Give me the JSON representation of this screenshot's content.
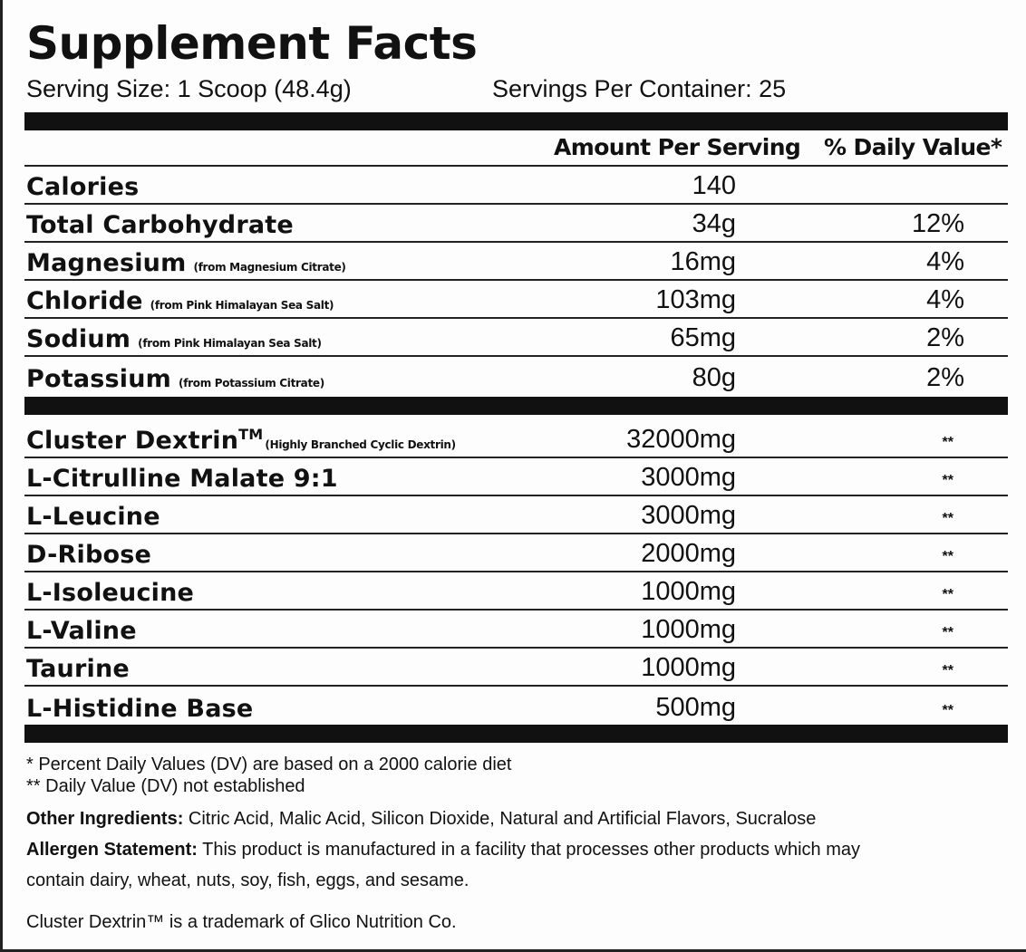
{
  "title": "Supplement Facts",
  "serving_size": "Serving Size: 1 Scoop (48.4g)",
  "servings_per_container": "Servings Per Container: 25",
  "header": {
    "amount": "Amount Per Serving",
    "dv": "% Daily Value*"
  },
  "nutrients": [
    {
      "name": "Calories",
      "source": "",
      "amount": "140",
      "dv": ""
    },
    {
      "name": "Total Carbohydrate",
      "source": "",
      "amount": "34g",
      "dv": "12%"
    },
    {
      "name": "Magnesium",
      "source": "(from Magnesium Citrate)",
      "amount": "16mg",
      "dv": "4%"
    },
    {
      "name": "Chloride",
      "source": "(from Pink Himalayan Sea Salt)",
      "amount": "103mg",
      "dv": "4%"
    },
    {
      "name": "Sodium",
      "source": "(from Pink Himalayan Sea Salt)",
      "amount": "65mg",
      "dv": "2%"
    },
    {
      "name": "Potassium",
      "source": "(from Potassium Citrate)",
      "amount": "80g",
      "dv": "2%"
    }
  ],
  "ingredients": [
    {
      "name": "Cluster Dextrin",
      "tm": "TM",
      "source": "(Highly Branched Cyclic Dextrin)",
      "amount": "32000mg",
      "dv": "**"
    },
    {
      "name": "L-Citrulline Malate 9:1",
      "tm": "",
      "source": "",
      "amount": "3000mg",
      "dv": "**"
    },
    {
      "name": "L-Leucine",
      "tm": "",
      "source": "",
      "amount": "3000mg",
      "dv": "**"
    },
    {
      "name": "D-Ribose",
      "tm": "",
      "source": "",
      "amount": "2000mg",
      "dv": "**"
    },
    {
      "name": "L-Isoleucine",
      "tm": "",
      "source": "",
      "amount": "1000mg",
      "dv": "**"
    },
    {
      "name": "L-Valine",
      "tm": "",
      "source": "",
      "amount": "1000mg",
      "dv": "**"
    },
    {
      "name": "Taurine",
      "tm": "",
      "source": "",
      "amount": "1000mg",
      "dv": "**"
    },
    {
      "name": "L-Histidine Base",
      "tm": "",
      "source": "",
      "amount": "500mg",
      "dv": "**"
    }
  ],
  "footnotes": {
    "dv_note": "* Percent Daily Values (DV) are based on a 2000 calorie diet",
    "not_established": "** Daily Value (DV) not established",
    "other_label": "Other Ingredients:",
    "other_text": " Citric Acid, Malic Acid, Silicon Dioxide, Natural and Artificial Flavors, Sucralose",
    "allergen_label": "Allergen Statement:",
    "allergen_text": " This product is manufactured in a facility that processes other products which may",
    "allergen_text2": "contain dairy, wheat, nuts, soy, fish, eggs, and sesame.",
    "trademark": "Cluster Dextrin™ is a trademark of Glico Nutrition Co."
  }
}
